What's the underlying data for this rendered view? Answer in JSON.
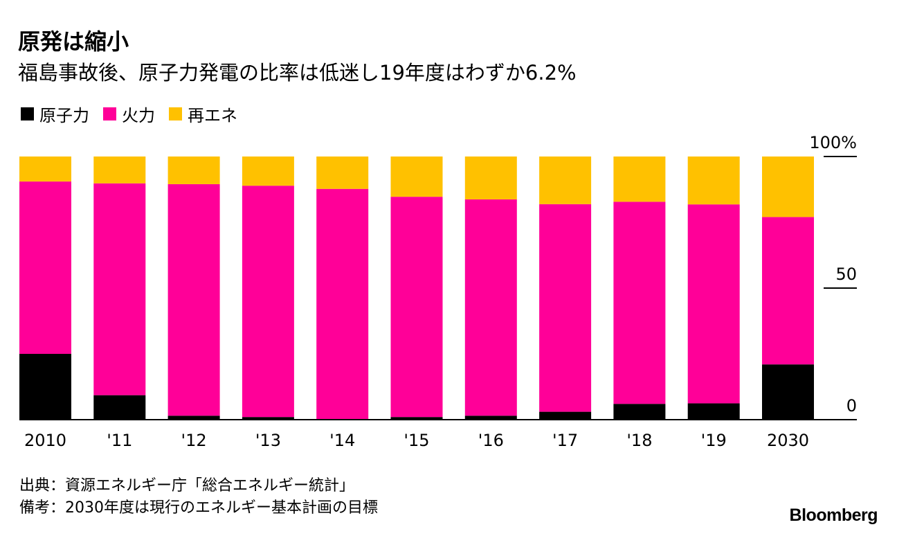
{
  "title": "原発は縮小",
  "subtitle": "福島事故後、原子力発電の比率は低迷し19年度はわずか6.2%",
  "colors": {
    "nuclear": "#000000",
    "thermal": "#FF0098",
    "renewable": "#FFC100",
    "axis": "#000000",
    "background": "#FFFFFF"
  },
  "legend": [
    {
      "label": "原子力",
      "color": "#000000"
    },
    {
      "label": "火力",
      "color": "#FF0098"
    },
    {
      "label": "再エネ",
      "color": "#FFC100"
    }
  ],
  "notes": {
    "source": "出典：資源エネルギー庁「総合エネルギー統計」",
    "remark": "備考：2030年度は現行のエネルギー基本計画の目標"
  },
  "brand": "Bloomberg",
  "chart_data": {
    "type": "bar",
    "stacked": true,
    "title": "原発は縮小",
    "subtitle": "福島事故後、原子力発電の比率は低迷し19年度はわずか6.2%",
    "categories": [
      "2010",
      "'11",
      "'12",
      "'13",
      "'14",
      "'15",
      "'16",
      "'17",
      "'18",
      "'19",
      "2030"
    ],
    "series": [
      {
        "name": "原子力",
        "color": "#000000",
        "values": [
          25,
          9.3,
          1.5,
          1,
          0,
          1,
          1.5,
          3,
          6,
          6.2,
          21
        ]
      },
      {
        "name": "火力",
        "color": "#FF0098",
        "values": [
          65.5,
          80.5,
          88,
          87.9,
          87.7,
          83.7,
          82.2,
          78.9,
          76.8,
          75.6,
          56
        ]
      },
      {
        "name": "再エネ",
        "color": "#FFC100",
        "values": [
          9.5,
          10.2,
          10.5,
          11.1,
          12.3,
          15.3,
          16.3,
          18.1,
          17.2,
          18.2,
          23
        ]
      }
    ],
    "ylim": [
      0,
      100
    ],
    "yticks": [
      {
        "value": 0,
        "label": "0"
      },
      {
        "value": 50,
        "label": "50"
      },
      {
        "value": 100,
        "label": "100%"
      }
    ],
    "xlabel": "",
    "ylabel": "",
    "grid": false,
    "legend_position": "top-left"
  }
}
